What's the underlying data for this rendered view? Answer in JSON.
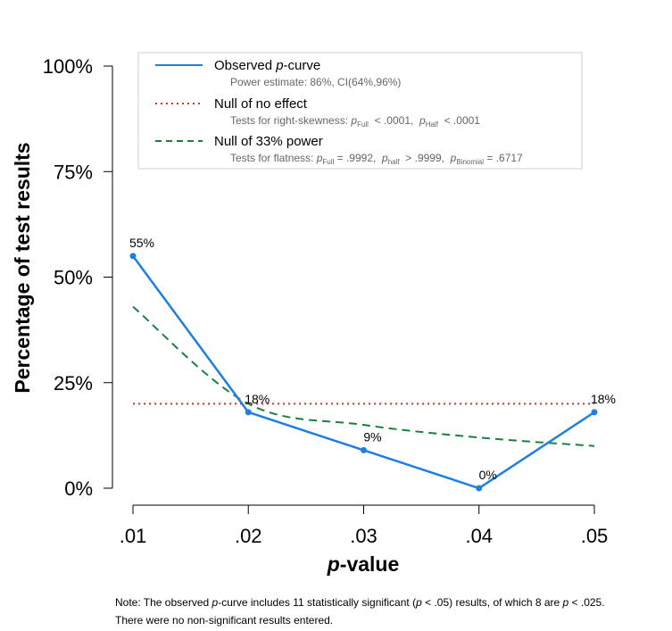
{
  "chart_data": {
    "type": "line",
    "x": [
      0.01,
      0.02,
      0.03,
      0.04,
      0.05
    ],
    "xticklabels": [
      ".01",
      ".02",
      ".03",
      ".04",
      ".05"
    ],
    "xlabel_italic": "p",
    "xlabel_rest": "-value",
    "ylabel": "Percentage of test results",
    "ylim": [
      0,
      100
    ],
    "yticks": [
      0,
      25,
      50,
      75,
      100
    ],
    "yticklabels": [
      "0%",
      "25%",
      "50%",
      "75%",
      "100%"
    ],
    "grid": false,
    "legend_position": "top",
    "series": [
      {
        "key": "observed",
        "values": [
          55,
          18,
          9,
          0,
          18
        ],
        "labels": [
          "55%",
          "18%",
          "9%",
          "0%",
          "18%"
        ],
        "color": "#1f7fe0",
        "style": "solid"
      },
      {
        "key": "null_no_effect",
        "values": [
          20,
          20,
          20,
          20,
          20
        ],
        "color": "#e0302a",
        "style": "dotted"
      },
      {
        "key": "null_33_power",
        "values": [
          43,
          20,
          15,
          12,
          10
        ],
        "color": "#1a8040",
        "style": "dashed"
      }
    ],
    "legend": {
      "observed_title_pre": "Observed ",
      "observed_title_italic": "p",
      "observed_title_post": "-curve",
      "observed_sub": "Power estimate: 86%, CI(64%,96%)",
      "null_title": "Null of no effect",
      "null_sub_pre": "Tests for right-skewness: ",
      "null_sub_p1": "p",
      "null_sub_p1_sub": "Full",
      "null_sub_p1_val": "  < .0001,  ",
      "null_sub_p2": "p",
      "null_sub_p2_sub": "Half",
      "null_sub_p2_val": "  < .0001",
      "power_title": "Null of 33% power",
      "power_sub_pre": "Tests for flatness: ",
      "power_sub_p1": "p",
      "power_sub_p1_sub": "Full",
      "power_sub_p1_val": " = .9992,  ",
      "power_sub_p2": "p",
      "power_sub_p2_sub": "half",
      "power_sub_p2_val": "  > .9999,  ",
      "power_sub_p3": "p",
      "power_sub_p3_sub": "Binomial",
      "power_sub_p3_val": " = .6717"
    }
  },
  "note": {
    "line1_a": "Note: The observed ",
    "line1_b": "p",
    "line1_c": "-curve includes 11 statistically significant (",
    "line1_d": "p",
    "line1_e": " < .05) results, of which 8 are ",
    "line1_f": "p",
    "line1_g": " < .025.",
    "line2": "There were no non-significant results entered."
  }
}
